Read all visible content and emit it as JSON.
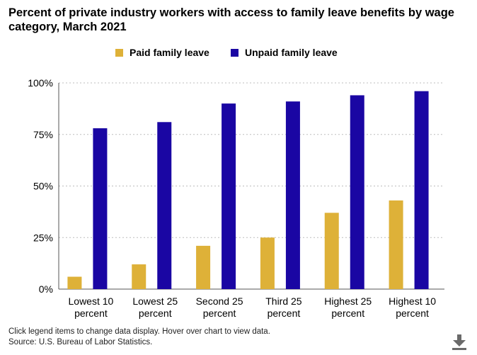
{
  "title": "Percent of private industry workers with access to family leave benefits by wage category, March 2021",
  "legend": [
    {
      "label": "Paid family leave",
      "color": "#deb138"
    },
    {
      "label": "Unpaid family leave",
      "color": "#1a06a3"
    }
  ],
  "footer": {
    "note": "Click legend items to change data display. Hover over chart to view data.",
    "source": "Source: U.S. Bureau of Labor Statistics."
  },
  "download_icon": "download-icon",
  "chart_data": {
    "type": "bar",
    "categories": [
      [
        "Lowest 10",
        "percent"
      ],
      [
        "Lowest 25",
        "percent"
      ],
      [
        "Second 25",
        "percent"
      ],
      [
        "Third 25",
        "percent"
      ],
      [
        "Highest 25",
        "percent"
      ],
      [
        "Highest 10",
        "percent"
      ]
    ],
    "series": [
      {
        "name": "Paid family leave",
        "color": "#deb138",
        "values": [
          6,
          12,
          21,
          25,
          37,
          43
        ]
      },
      {
        "name": "Unpaid family leave",
        "color": "#1a06a3",
        "values": [
          78,
          81,
          90,
          91,
          94,
          96
        ]
      }
    ],
    "yticks": [
      "0%",
      "25%",
      "50%",
      "75%",
      "100%"
    ],
    "ylim": [
      0,
      100
    ],
    "grid": true,
    "legend_position": "top"
  }
}
